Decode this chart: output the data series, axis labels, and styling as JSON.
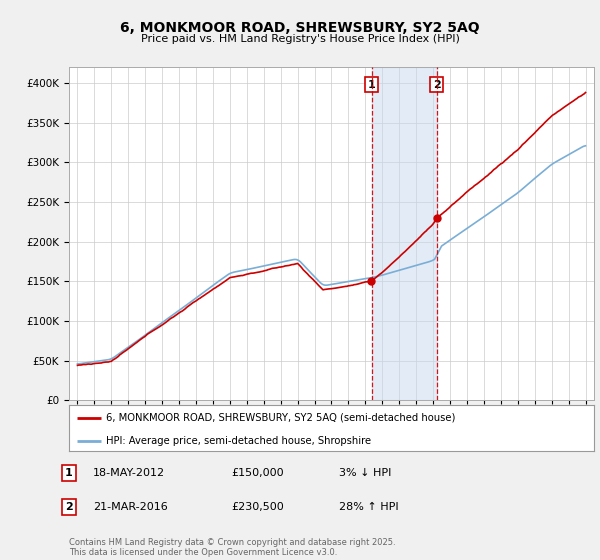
{
  "title": "6, MONKMOOR ROAD, SHREWSBURY, SY2 5AQ",
  "subtitle": "Price paid vs. HM Land Registry's House Price Index (HPI)",
  "ylim": [
    0,
    420000
  ],
  "yticks": [
    0,
    50000,
    100000,
    150000,
    200000,
    250000,
    300000,
    350000,
    400000
  ],
  "sale1_year": 2012.37,
  "sale1_price": 150000,
  "sale1_label": "1",
  "sale1_date": "18-MAY-2012",
  "sale1_pct": "3% ↓ HPI",
  "sale2_year": 2016.22,
  "sale2_price": 230500,
  "sale2_label": "2",
  "sale2_date": "21-MAR-2016",
  "sale2_pct": "28% ↑ HPI",
  "shade_color": "#c8d8ee",
  "shade_alpha": 0.5,
  "line1_color": "#cc0000",
  "line2_color": "#7aaed6",
  "line1_label": "6, MONKMOOR ROAD, SHREWSBURY, SY2 5AQ (semi-detached house)",
  "line2_label": "HPI: Average price, semi-detached house, Shropshire",
  "footnote": "Contains HM Land Registry data © Crown copyright and database right 2025.\nThis data is licensed under the Open Government Licence v3.0.",
  "bg_color": "#f0f0f0",
  "plot_bg_color": "#ffffff",
  "grid_color": "#cccccc"
}
